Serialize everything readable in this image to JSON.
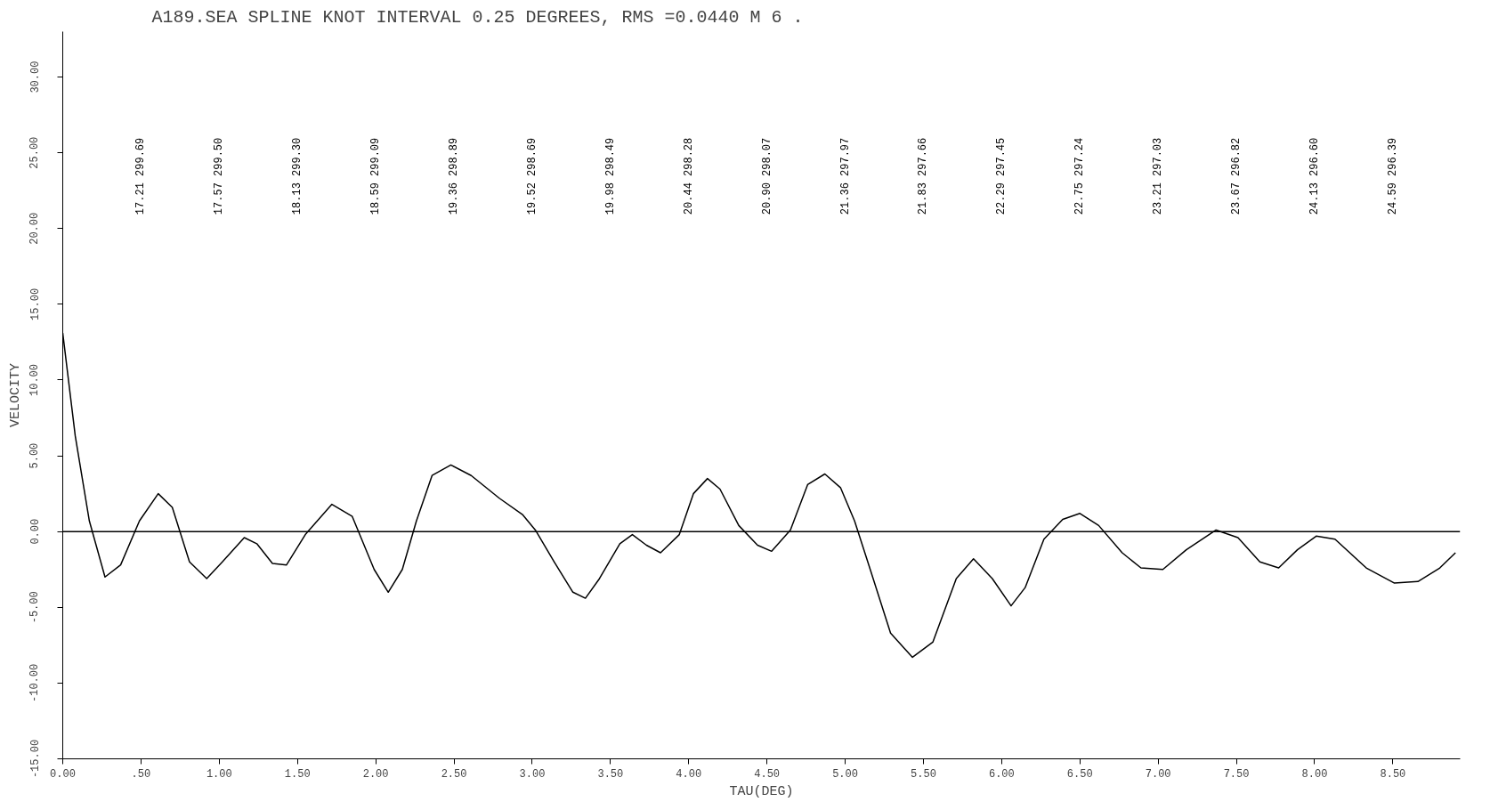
{
  "chart_data": {
    "type": "line",
    "title": "A189.SEA    SPLINE KNOT INTERVAL  0.25 DEGREES, RMS =0.0440 M    6 .",
    "xlabel": "TAU(DEG)",
    "ylabel": "VELOCITY",
    "x": [
      0.0,
      0.08,
      0.17,
      0.27,
      0.37,
      0.49,
      0.61,
      0.7,
      0.81,
      0.92,
      1.02,
      1.16,
      1.24,
      1.34,
      1.43,
      1.55,
      1.72,
      1.85,
      1.99,
      2.08,
      2.17,
      2.26,
      2.36,
      2.48,
      2.61,
      2.79,
      2.94,
      3.02,
      3.14,
      3.26,
      3.34,
      3.43,
      3.56,
      3.64,
      3.73,
      3.82,
      3.94,
      4.03,
      4.12,
      4.2,
      4.32,
      4.44,
      4.53,
      4.65,
      4.76,
      4.87,
      4.97,
      5.06,
      5.16,
      5.29,
      5.43,
      5.56,
      5.71,
      5.82,
      5.94,
      6.06,
      6.15,
      6.27,
      6.39,
      6.5,
      6.62,
      6.77,
      6.89,
      7.03,
      7.18,
      7.37,
      7.51,
      7.65,
      7.77,
      7.89,
      8.01,
      8.13,
      8.33,
      8.51,
      8.66,
      8.8,
      8.9
    ],
    "series": [
      {
        "color": "#000000",
        "values": [
          13.1,
          6.3,
          0.7,
          -3.0,
          -2.2,
          0.7,
          2.5,
          1.6,
          -2.0,
          -3.1,
          -2.0,
          -0.4,
          -0.8,
          -2.1,
          -2.2,
          -0.2,
          1.8,
          1.0,
          -2.5,
          -4.0,
          -2.5,
          0.7,
          3.7,
          4.4,
          3.7,
          2.2,
          1.1,
          0.1,
          -2.0,
          -4.0,
          -4.4,
          -3.1,
          -0.8,
          -0.2,
          -0.9,
          -1.4,
          -0.2,
          2.5,
          3.5,
          2.8,
          0.4,
          -0.9,
          -1.3,
          0.1,
          3.1,
          3.8,
          2.9,
          0.7,
          -2.5,
          -6.7,
          -8.3,
          -7.3,
          -3.1,
          -1.8,
          -3.1,
          -4.9,
          -3.7,
          -0.5,
          0.8,
          1.2,
          0.4,
          -1.4,
          -2.4,
          -2.5,
          -1.2,
          0.1,
          -0.4,
          -2.0,
          -2.4,
          -1.2,
          -0.3,
          -0.5,
          -2.4,
          -3.4,
          -3.3,
          -2.4,
          -1.4
        ]
      }
    ],
    "xlim": [
      0,
      8.93
    ],
    "ylim": [
      -15,
      33
    ],
    "xticks": [
      {
        "value": 0,
        "label": "0.00"
      },
      {
        "value": 0.5,
        "label": ".50"
      },
      {
        "value": 1,
        "label": "1.00"
      },
      {
        "value": 1.5,
        "label": "1.50"
      },
      {
        "value": 2,
        "label": "2.00"
      },
      {
        "value": 2.5,
        "label": "2.50"
      },
      {
        "value": 3,
        "label": "3.00"
      },
      {
        "value": 3.5,
        "label": "3.50"
      },
      {
        "value": 4,
        "label": "4.00"
      },
      {
        "value": 4.5,
        "label": "4.50"
      },
      {
        "value": 5,
        "label": "5.00"
      },
      {
        "value": 5.5,
        "label": "5.50"
      },
      {
        "value": 6,
        "label": "6.00"
      },
      {
        "value": 6.5,
        "label": "6.50"
      },
      {
        "value": 7,
        "label": "7.00"
      },
      {
        "value": 7.5,
        "label": "7.50"
      },
      {
        "value": 8,
        "label": "8.00"
      },
      {
        "value": 8.5,
        "label": "8.50"
      }
    ],
    "yticks": [
      {
        "value": -15,
        "label": "-15.00"
      },
      {
        "value": -10,
        "label": "-10.00"
      },
      {
        "value": -5,
        "label": "-5.00"
      },
      {
        "value": 0,
        "label": "0.00"
      },
      {
        "value": 5,
        "label": "5.00"
      },
      {
        "value": 10,
        "label": "10.00"
      },
      {
        "value": 15,
        "label": "15.00"
      },
      {
        "value": 20,
        "label": "20.00"
      },
      {
        "value": 25,
        "label": "25.00"
      },
      {
        "value": 30,
        "label": "30.00"
      }
    ],
    "ref_lines": [
      {
        "axis": "y",
        "value": 0,
        "color": "#000000"
      }
    ],
    "annotations": [
      "17.21   299.69",
      "17.57   299.50",
      "18.13   299.30",
      "18.59   299.09",
      "19.36   298.89",
      "19.52   298.69",
      "19.98   298.49",
      "20.44   298.28",
      "20.90   298.07",
      "21.36   297.97",
      "21.83   297.66",
      "22.29   297.45",
      "22.75   297.24",
      "23.21   297.03",
      "23.67   296.82",
      "24.13   296.60",
      "24.59   296.39"
    ],
    "grid": false
  }
}
